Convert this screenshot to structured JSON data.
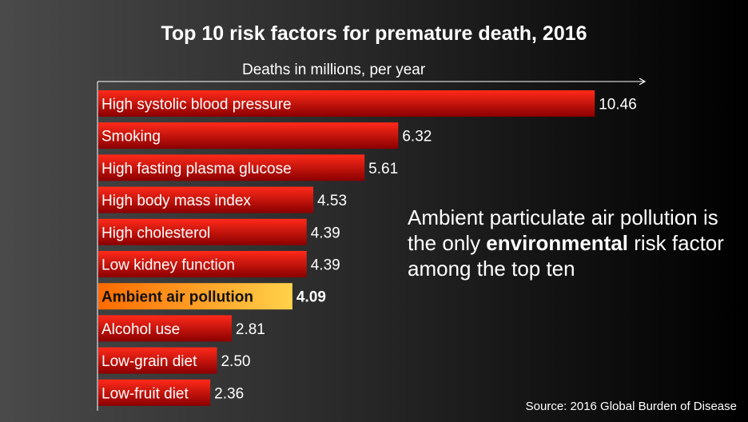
{
  "chart_data": {
    "type": "bar",
    "orientation": "horizontal",
    "title": "Top 10 risk factors for premature death, 2016",
    "axis_label": "Deaths in millions, per year",
    "categories": [
      "High systolic blood pressure",
      "Smoking",
      "High fasting plasma glucose",
      "High body mass index",
      "High cholesterol",
      "Low kidney function",
      "Ambient air pollution",
      "Alcohol use",
      "Low-grain diet",
      "Low-fruit diet"
    ],
    "values": [
      10.46,
      6.32,
      5.61,
      4.53,
      4.39,
      4.39,
      4.09,
      2.81,
      2.5,
      2.36
    ],
    "value_labels": [
      "10.46",
      "6.32",
      "5.61",
      "4.53",
      "4.39",
      "4.39",
      "4.09",
      "2.81",
      "2.50",
      "2.36"
    ],
    "highlight_index": 6,
    "xlim": [
      0,
      11.5
    ],
    "colors": {
      "bar_light": "#ff2a1a",
      "bar_dark": "#8a0000",
      "highlight_light": "#ffd24a",
      "highlight_dark": "#ff6a00",
      "highlight_text": "#111111"
    }
  },
  "annotation": {
    "before": "Ambient particulate air pollution is the only ",
    "emphasis": "environmental",
    "after": " risk factor among the top ten"
  },
  "source": "Source: 2016 Global Burden of Disease"
}
